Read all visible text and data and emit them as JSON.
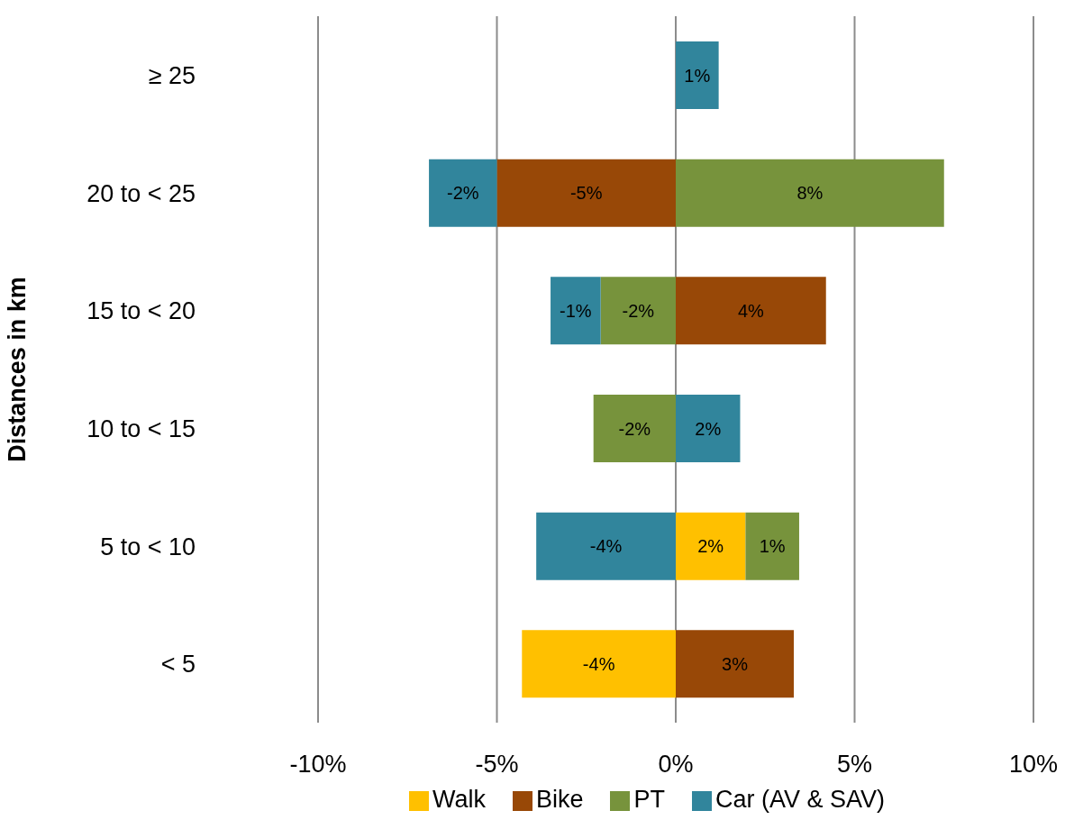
{
  "chart_data": {
    "type": "bar",
    "orientation": "horizontal",
    "stacked": true,
    "ylabel": "Distances in km",
    "categories": [
      "≥ 25",
      "20 to < 25",
      "15 to < 20",
      "10 to < 15",
      "5 to < 10",
      "< 5"
    ],
    "series": [
      {
        "name": "Walk",
        "color": "#ffc000",
        "values": [
          null,
          null,
          null,
          null,
          1.95,
          -4.3
        ],
        "value_labels": [
          null,
          null,
          null,
          null,
          "2%",
          "-4%"
        ]
      },
      {
        "name": "Bike",
        "color": "#984807",
        "values": [
          null,
          -5,
          4.2,
          null,
          null,
          3.3
        ],
        "value_labels": [
          null,
          "-5%",
          "4%",
          null,
          null,
          "3%"
        ]
      },
      {
        "name": "PT",
        "color": "#77933c",
        "values": [
          null,
          7.5,
          -2.1,
          -2.3,
          1.5,
          null
        ],
        "value_labels": [
          null,
          "8%",
          "-2%",
          "-2%",
          "1%",
          null
        ]
      },
      {
        "name": "Car (AV & SAV)",
        "color": "#31859c",
        "values": [
          1.2,
          -1.9,
          -1.4,
          1.8,
          -3.9,
          null
        ],
        "value_labels": [
          "1%",
          "-2%",
          "-1%",
          "2%",
          "-4%",
          null
        ]
      }
    ],
    "xlim": [
      -10,
      10
    ],
    "xticks": [
      {
        "value": -10,
        "label": "-10%"
      },
      {
        "value": -5,
        "label": "-5%"
      },
      {
        "value": 0,
        "label": "0%"
      },
      {
        "value": 5,
        "label": "5%"
      },
      {
        "value": 10,
        "label": "10%"
      }
    ],
    "grid": "x",
    "legend": "bottom"
  }
}
